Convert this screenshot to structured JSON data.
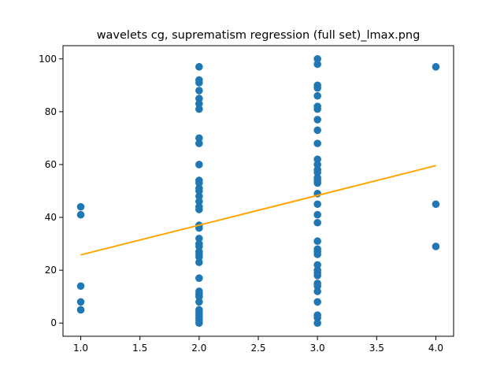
{
  "chart_data": {
    "type": "scatter",
    "title": "wavelets cg, suprematism regression (full set)_lmax.png",
    "xlabel": "",
    "ylabel": "",
    "xlim": [
      0.85,
      4.15
    ],
    "ylim": [
      -5,
      105
    ],
    "x_ticks": [
      1.0,
      1.5,
      2.0,
      2.5,
      3.0,
      3.5,
      4.0
    ],
    "x_tick_labels": [
      "1.0",
      "1.5",
      "2.0",
      "2.5",
      "3.0",
      "3.5",
      "4.0"
    ],
    "y_ticks": [
      0,
      20,
      40,
      60,
      80,
      100
    ],
    "y_tick_labels": [
      "0",
      "20",
      "40",
      "60",
      "80",
      "100"
    ],
    "grid": false,
    "colors": {
      "points": "#1f77b4",
      "regression": "#ffa500"
    },
    "points": [
      {
        "x": 1,
        "y": 44
      },
      {
        "x": 1,
        "y": 41
      },
      {
        "x": 1,
        "y": 14
      },
      {
        "x": 1,
        "y": 8
      },
      {
        "x": 1,
        "y": 5
      },
      {
        "x": 2,
        "y": 97
      },
      {
        "x": 2,
        "y": 92
      },
      {
        "x": 2,
        "y": 91
      },
      {
        "x": 2,
        "y": 88
      },
      {
        "x": 2,
        "y": 85
      },
      {
        "x": 2,
        "y": 83
      },
      {
        "x": 2,
        "y": 81
      },
      {
        "x": 2,
        "y": 70
      },
      {
        "x": 2,
        "y": 68
      },
      {
        "x": 2,
        "y": 60
      },
      {
        "x": 2,
        "y": 54
      },
      {
        "x": 2,
        "y": 53
      },
      {
        "x": 2,
        "y": 51
      },
      {
        "x": 2,
        "y": 50
      },
      {
        "x": 2,
        "y": 48
      },
      {
        "x": 2,
        "y": 46
      },
      {
        "x": 2,
        "y": 44
      },
      {
        "x": 2,
        "y": 43
      },
      {
        "x": 2,
        "y": 37
      },
      {
        "x": 2,
        "y": 36
      },
      {
        "x": 2,
        "y": 32
      },
      {
        "x": 2,
        "y": 30
      },
      {
        "x": 2,
        "y": 29
      },
      {
        "x": 2,
        "y": 27
      },
      {
        "x": 2,
        "y": 26
      },
      {
        "x": 2,
        "y": 25
      },
      {
        "x": 2,
        "y": 23
      },
      {
        "x": 2,
        "y": 17
      },
      {
        "x": 2,
        "y": 12
      },
      {
        "x": 2,
        "y": 11
      },
      {
        "x": 2,
        "y": 10
      },
      {
        "x": 2,
        "y": 8
      },
      {
        "x": 2,
        "y": 5
      },
      {
        "x": 2,
        "y": 4
      },
      {
        "x": 2,
        "y": 3
      },
      {
        "x": 2,
        "y": 2
      },
      {
        "x": 2,
        "y": 1
      },
      {
        "x": 2,
        "y": 0
      },
      {
        "x": 3,
        "y": 100
      },
      {
        "x": 3,
        "y": 98
      },
      {
        "x": 3,
        "y": 90
      },
      {
        "x": 3,
        "y": 89
      },
      {
        "x": 3,
        "y": 86
      },
      {
        "x": 3,
        "y": 82
      },
      {
        "x": 3,
        "y": 81
      },
      {
        "x": 3,
        "y": 77
      },
      {
        "x": 3,
        "y": 73
      },
      {
        "x": 3,
        "y": 68
      },
      {
        "x": 3,
        "y": 62
      },
      {
        "x": 3,
        "y": 60
      },
      {
        "x": 3,
        "y": 58
      },
      {
        "x": 3,
        "y": 57
      },
      {
        "x": 3,
        "y": 55
      },
      {
        "x": 3,
        "y": 54
      },
      {
        "x": 3,
        "y": 53
      },
      {
        "x": 3,
        "y": 49
      },
      {
        "x": 3,
        "y": 45
      },
      {
        "x": 3,
        "y": 41
      },
      {
        "x": 3,
        "y": 38
      },
      {
        "x": 3,
        "y": 31
      },
      {
        "x": 3,
        "y": 28
      },
      {
        "x": 3,
        "y": 27
      },
      {
        "x": 3,
        "y": 26
      },
      {
        "x": 3,
        "y": 22
      },
      {
        "x": 3,
        "y": 20
      },
      {
        "x": 3,
        "y": 19
      },
      {
        "x": 3,
        "y": 18
      },
      {
        "x": 3,
        "y": 15
      },
      {
        "x": 3,
        "y": 14
      },
      {
        "x": 3,
        "y": 12
      },
      {
        "x": 3,
        "y": 8
      },
      {
        "x": 3,
        "y": 3
      },
      {
        "x": 3,
        "y": 2
      },
      {
        "x": 3,
        "y": 0
      },
      {
        "x": 4,
        "y": 97
      },
      {
        "x": 4,
        "y": 45
      },
      {
        "x": 4,
        "y": 29
      }
    ],
    "regression_line": {
      "x": [
        1,
        4
      ],
      "y": [
        25.8,
        59.6
      ]
    }
  }
}
